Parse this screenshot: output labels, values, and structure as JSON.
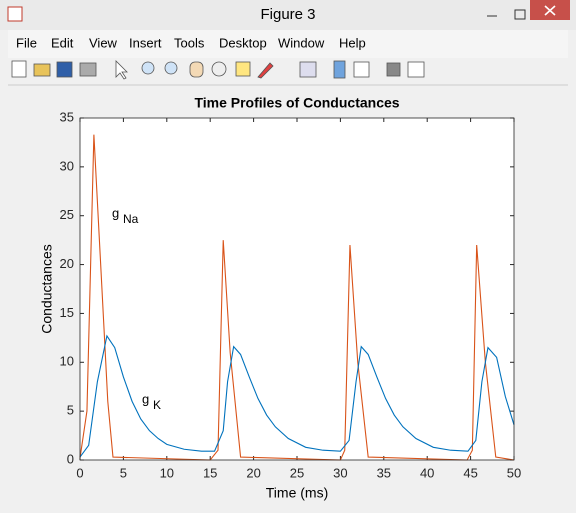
{
  "window": {
    "title": "Figure 3",
    "menu": [
      "File",
      "Edit",
      "View",
      "Insert",
      "Tools",
      "Desktop",
      "Window",
      "Help"
    ]
  },
  "chart_data": {
    "type": "line",
    "title": "Time Profiles of Conductances",
    "xlabel": "Time (ms)",
    "ylabel": "Conductances",
    "xlim": [
      0,
      50
    ],
    "ylim": [
      0,
      35
    ],
    "xticks": [
      0,
      5,
      10,
      15,
      20,
      25,
      30,
      35,
      40,
      45,
      50
    ],
    "yticks": [
      0,
      5,
      10,
      15,
      20,
      25,
      30,
      35
    ],
    "annotations": [
      {
        "text": "g",
        "sub": "Na"
      },
      {
        "text": "g",
        "sub": "K"
      }
    ],
    "series": [
      {
        "color": "#d95319",
        "x": [
          0,
          0.8,
          1.6,
          2.5,
          3.2,
          3.8,
          15,
          15.9,
          16.5,
          17.3,
          18.5,
          30,
          30.5,
          31.1,
          32,
          33.2,
          44.6,
          45.2,
          45.7,
          46.7,
          47.9,
          50
        ],
        "values": [
          0.2,
          5,
          33.3,
          18,
          6,
          0.3,
          0,
          1,
          22.5,
          11,
          0.3,
          0,
          1,
          22,
          10,
          0.3,
          0,
          1,
          22,
          10,
          0.3,
          0
        ]
      },
      {
        "color": "#0072bd",
        "x": [
          0,
          1,
          2,
          3.1,
          4,
          5,
          6,
          7,
          8,
          9,
          10,
          12,
          14,
          15.5,
          16.5,
          17,
          17.7,
          18.5,
          19.5,
          20.5,
          21.5,
          22.5,
          24,
          26,
          28,
          30,
          31,
          31.8,
          32.4,
          33.2,
          34.2,
          35.2,
          36.2,
          37.2,
          38.7,
          40.7,
          42.7,
          44.7,
          45.6,
          46.3,
          47,
          48,
          49,
          50
        ],
        "values": [
          0.3,
          1.5,
          8,
          12.7,
          11.5,
          8.5,
          6,
          4.2,
          3,
          2.2,
          1.6,
          1.1,
          0.9,
          0.9,
          3,
          8,
          11.6,
          10.8,
          8.5,
          6.3,
          4.6,
          3.4,
          2.2,
          1.3,
          1,
          0.9,
          2,
          8,
          11.6,
          10.8,
          8.5,
          6.3,
          4.6,
          3.4,
          2.2,
          1.3,
          1,
          0.9,
          2,
          8,
          11.5,
          10.5,
          6.5,
          3.6
        ]
      }
    ]
  }
}
